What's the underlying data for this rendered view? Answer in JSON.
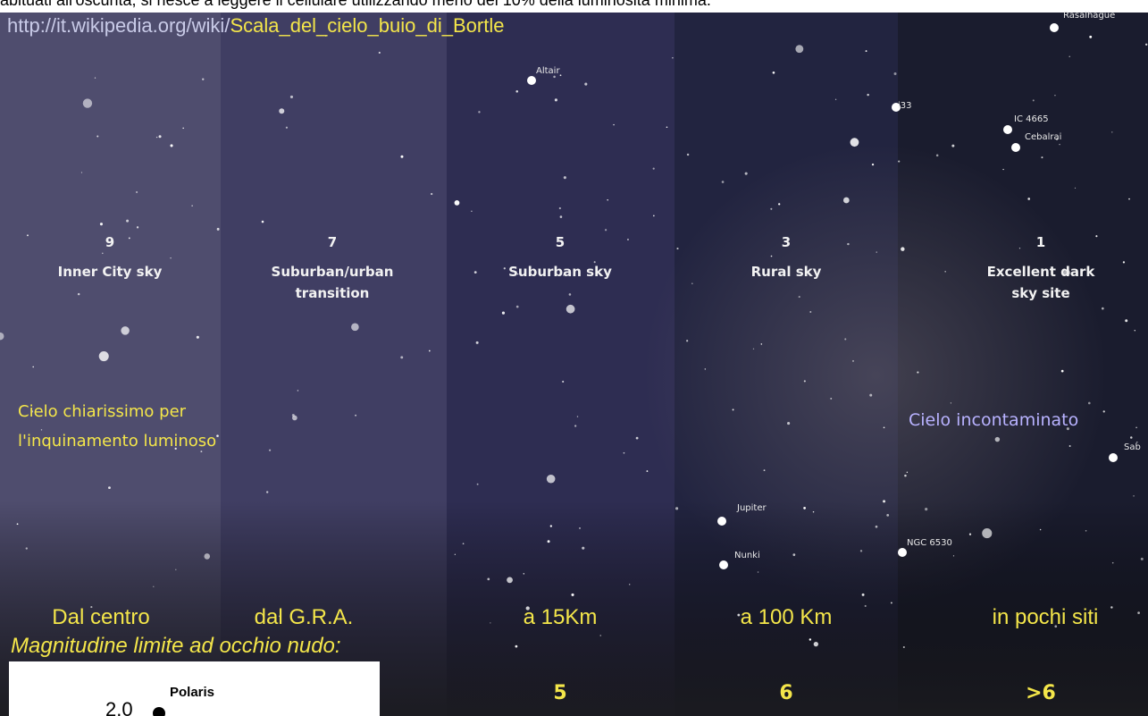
{
  "header": {
    "caption": "abituati all'oscurità, si riesce a leggere il cellulare utilizzando meno del 10% della luminosità minima.",
    "url_base": "http://it.wikipedia.org/wiki/",
    "url_page": "Scala_del_cielo_buio_di_Bortle"
  },
  "zones": [
    {
      "number": "9",
      "name": [
        "Inner City sky"
      ],
      "distance": "Dal centro"
    },
    {
      "number": "7",
      "name": [
        "Suburban/urban",
        "transition"
      ],
      "distance": "dal G.R.A."
    },
    {
      "number": "5",
      "name": [
        "Suburban sky"
      ],
      "distance": "a 15Km",
      "magnitude": "5"
    },
    {
      "number": "3",
      "name": [
        "Rural sky"
      ],
      "distance": "a 100 Km",
      "magnitude": "6"
    },
    {
      "number": "1",
      "name": [
        "Excellent dark",
        "sky site"
      ],
      "distance": "in pochi siti",
      "magnitude": ">6"
    }
  ],
  "notes": {
    "bright": [
      "Cielo chiarissimo per",
      "l'inquinamento luminoso"
    ],
    "dark": "Cielo incontaminato",
    "magnitude_title": "Magnitudine limite ad occhio nudo:"
  },
  "stars": [
    "Altair",
    "Rasalhague",
    "IC 4665",
    "Cebalrai",
    "Jupiter",
    "Nunki",
    "NGC 6530",
    "i33",
    "Sab"
  ],
  "inset": {
    "value": "2.0",
    "label": "Polaris"
  }
}
